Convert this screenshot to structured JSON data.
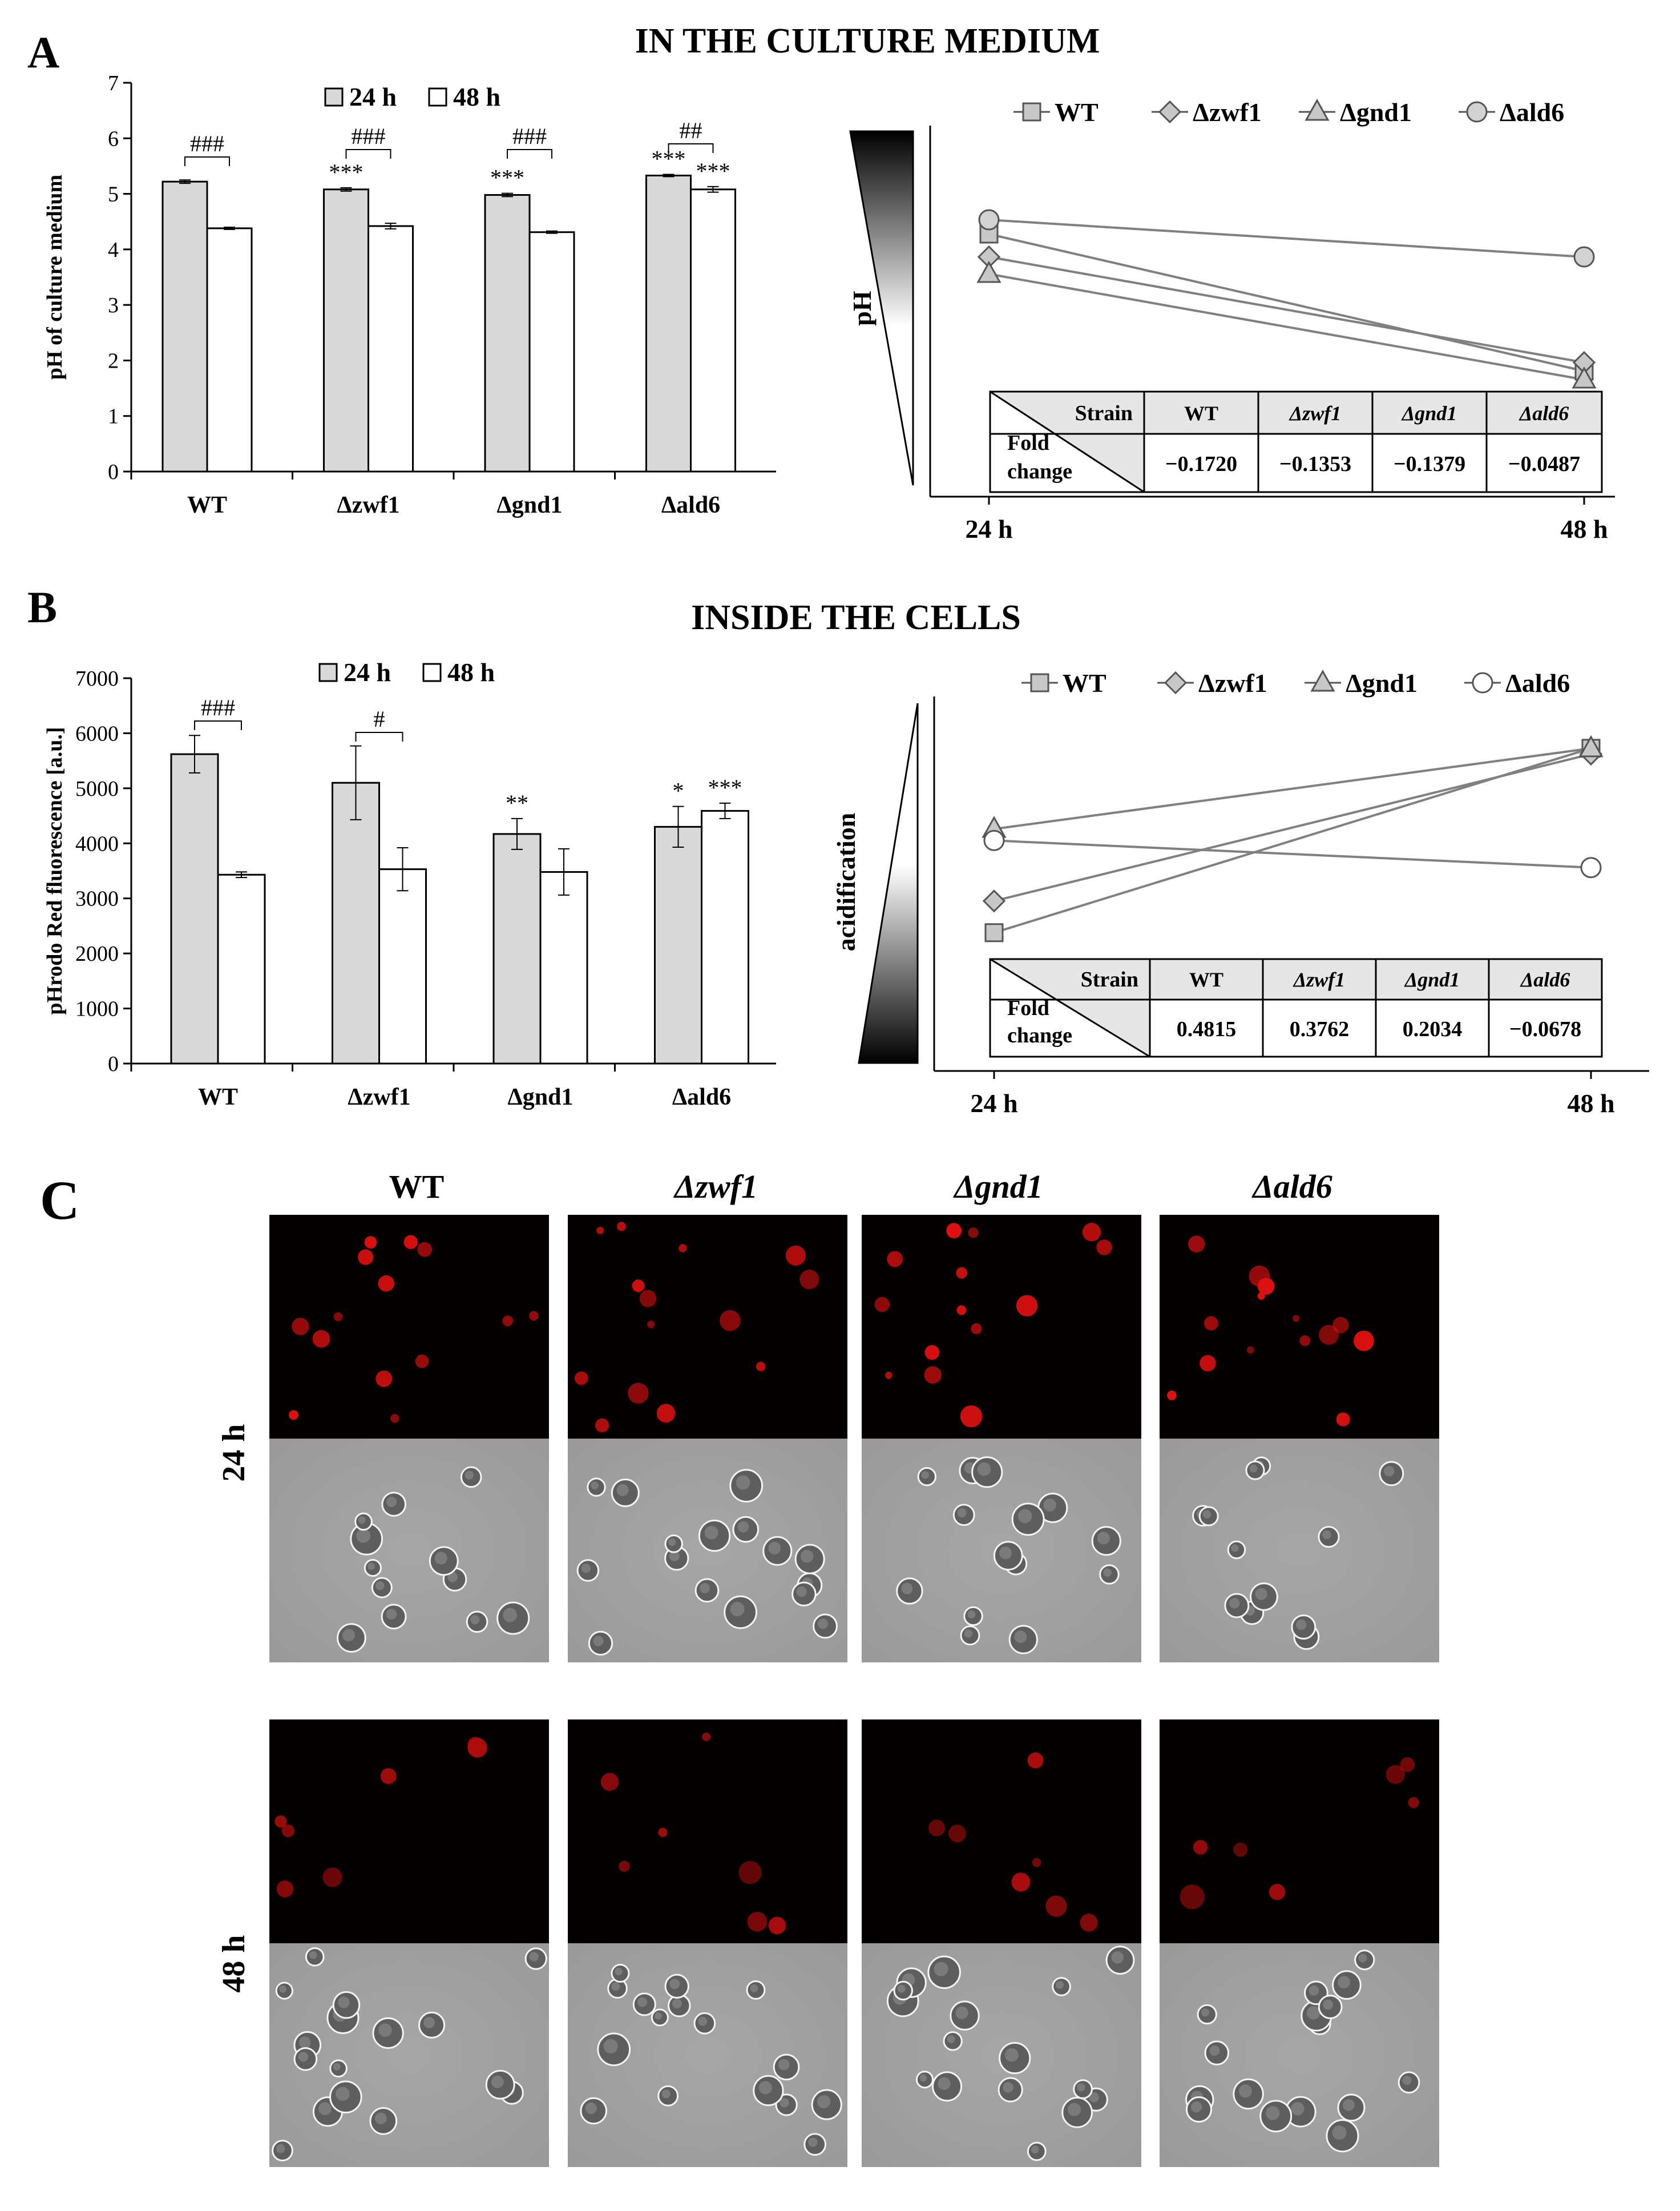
{
  "panel_a": {
    "letter": "A",
    "heading": "IN THE CULTURE MEDIUM",
    "bar_ylabel": "pH of culture medium",
    "line_ylabel": "pH",
    "table": {
      "strain_label": "Strain",
      "fold_label_1": "Fold",
      "fold_label_2": "change",
      "strains": [
        "WT",
        "Δzwf1",
        "Δgnd1",
        "Δald6"
      ],
      "values": [
        "−0.1720",
        "−0.1353",
        "−0.1379",
        "−0.0487"
      ]
    }
  },
  "panel_b": {
    "letter": "B",
    "heading": "INSIDE THE CELLS",
    "bar_ylabel": "pHrodo Red fluorescence [a.u.]",
    "line_ylabel": "acidification",
    "table": {
      "strain_label": "Strain",
      "fold_label_1": "Fold",
      "fold_label_2": "change",
      "strains": [
        "WT",
        "Δzwf1",
        "Δgnd1",
        "Δald6"
      ],
      "values": [
        "0.4815",
        "0.3762",
        "0.2034",
        "−0.0678"
      ]
    }
  },
  "panel_c": {
    "letter": "C",
    "columns": [
      "WT",
      "Δzwf1",
      "Δgnd1",
      "Δald6"
    ],
    "rows": [
      "24 h",
      "48 h"
    ]
  },
  "chart_data": [
    {
      "id": "A-bar",
      "type": "bar",
      "categories": [
        "WT",
        "Δzwf1",
        "Δgnd1",
        "Δald6"
      ],
      "series": [
        {
          "name": "24 h",
          "color": "#d9d9d9",
          "values": [
            5.22,
            5.08,
            4.98,
            5.33
          ],
          "errors": [
            0.03,
            0.03,
            0.03,
            0.02
          ],
          "marks": [
            "",
            "***",
            "***",
            "***"
          ]
        },
        {
          "name": "48 h",
          "color": "#ffffff",
          "values": [
            4.38,
            4.42,
            4.31,
            5.08
          ],
          "errors": [
            0.02,
            0.05,
            0.02,
            0.05
          ],
          "marks": [
            "",
            "",
            "",
            "***"
          ]
        }
      ],
      "brackets": [
        "###",
        "###",
        "###",
        "##"
      ],
      "ylabel": "pH of culture medium",
      "ylim": [
        0,
        7
      ],
      "yticks": [
        0,
        1,
        2,
        3,
        4,
        5,
        6,
        7
      ]
    },
    {
      "id": "A-line",
      "type": "line",
      "x": [
        "24 h",
        "48 h"
      ],
      "series": [
        {
          "name": "WT",
          "marker": "square",
          "values": [
            4.6,
            2.2
          ]
        },
        {
          "name": "Δzwf1",
          "marker": "diamond",
          "values": [
            4.2,
            2.35
          ]
        },
        {
          "name": "Δgnd1",
          "marker": "triangle",
          "values": [
            3.9,
            2.05
          ]
        },
        {
          "name": "Δald6",
          "marker": "circle",
          "values": [
            4.85,
            4.2
          ]
        }
      ],
      "ylabel": "pH",
      "ylim": [
        0,
        6.5
      ],
      "legend": "top"
    },
    {
      "id": "B-bar",
      "type": "bar",
      "categories": [
        "WT",
        "Δzwf1",
        "Δgnd1",
        "Δald6"
      ],
      "series": [
        {
          "name": "24 h",
          "color": "#d9d9d9",
          "values": [
            5620,
            5100,
            4170,
            4300
          ],
          "errors": [
            340,
            670,
            280,
            370
          ],
          "marks": [
            "",
            "",
            "**",
            "*"
          ]
        },
        {
          "name": "48 h",
          "color": "#ffffff",
          "values": [
            3430,
            3530,
            3480,
            4590
          ],
          "errors": [
            50,
            390,
            420,
            140
          ],
          "marks": [
            "",
            "",
            "",
            "***"
          ]
        }
      ],
      "brackets": [
        "###",
        "#",
        "",
        ""
      ],
      "ylabel": "pHrodo Red fluorescence [a.u.]",
      "ylim": [
        0,
        7000
      ],
      "yticks": [
        0,
        1000,
        2000,
        3000,
        4000,
        5000,
        6000,
        7000
      ]
    },
    {
      "id": "B-line",
      "type": "line",
      "x": [
        "24 h",
        "48 h"
      ],
      "series": [
        {
          "name": "WT",
          "marker": "square",
          "values": [
            2400,
            5600
          ]
        },
        {
          "name": "Δzwf1",
          "marker": "diamond",
          "values": [
            2950,
            5500
          ]
        },
        {
          "name": "Δgnd1",
          "marker": "triangle",
          "values": [
            4200,
            5600
          ]
        },
        {
          "name": "Δald6",
          "marker": "circle",
          "values": [
            4000,
            3530
          ]
        }
      ],
      "ylabel": "acidification",
      "ylim": [
        0,
        6500
      ],
      "legend": "top"
    }
  ]
}
